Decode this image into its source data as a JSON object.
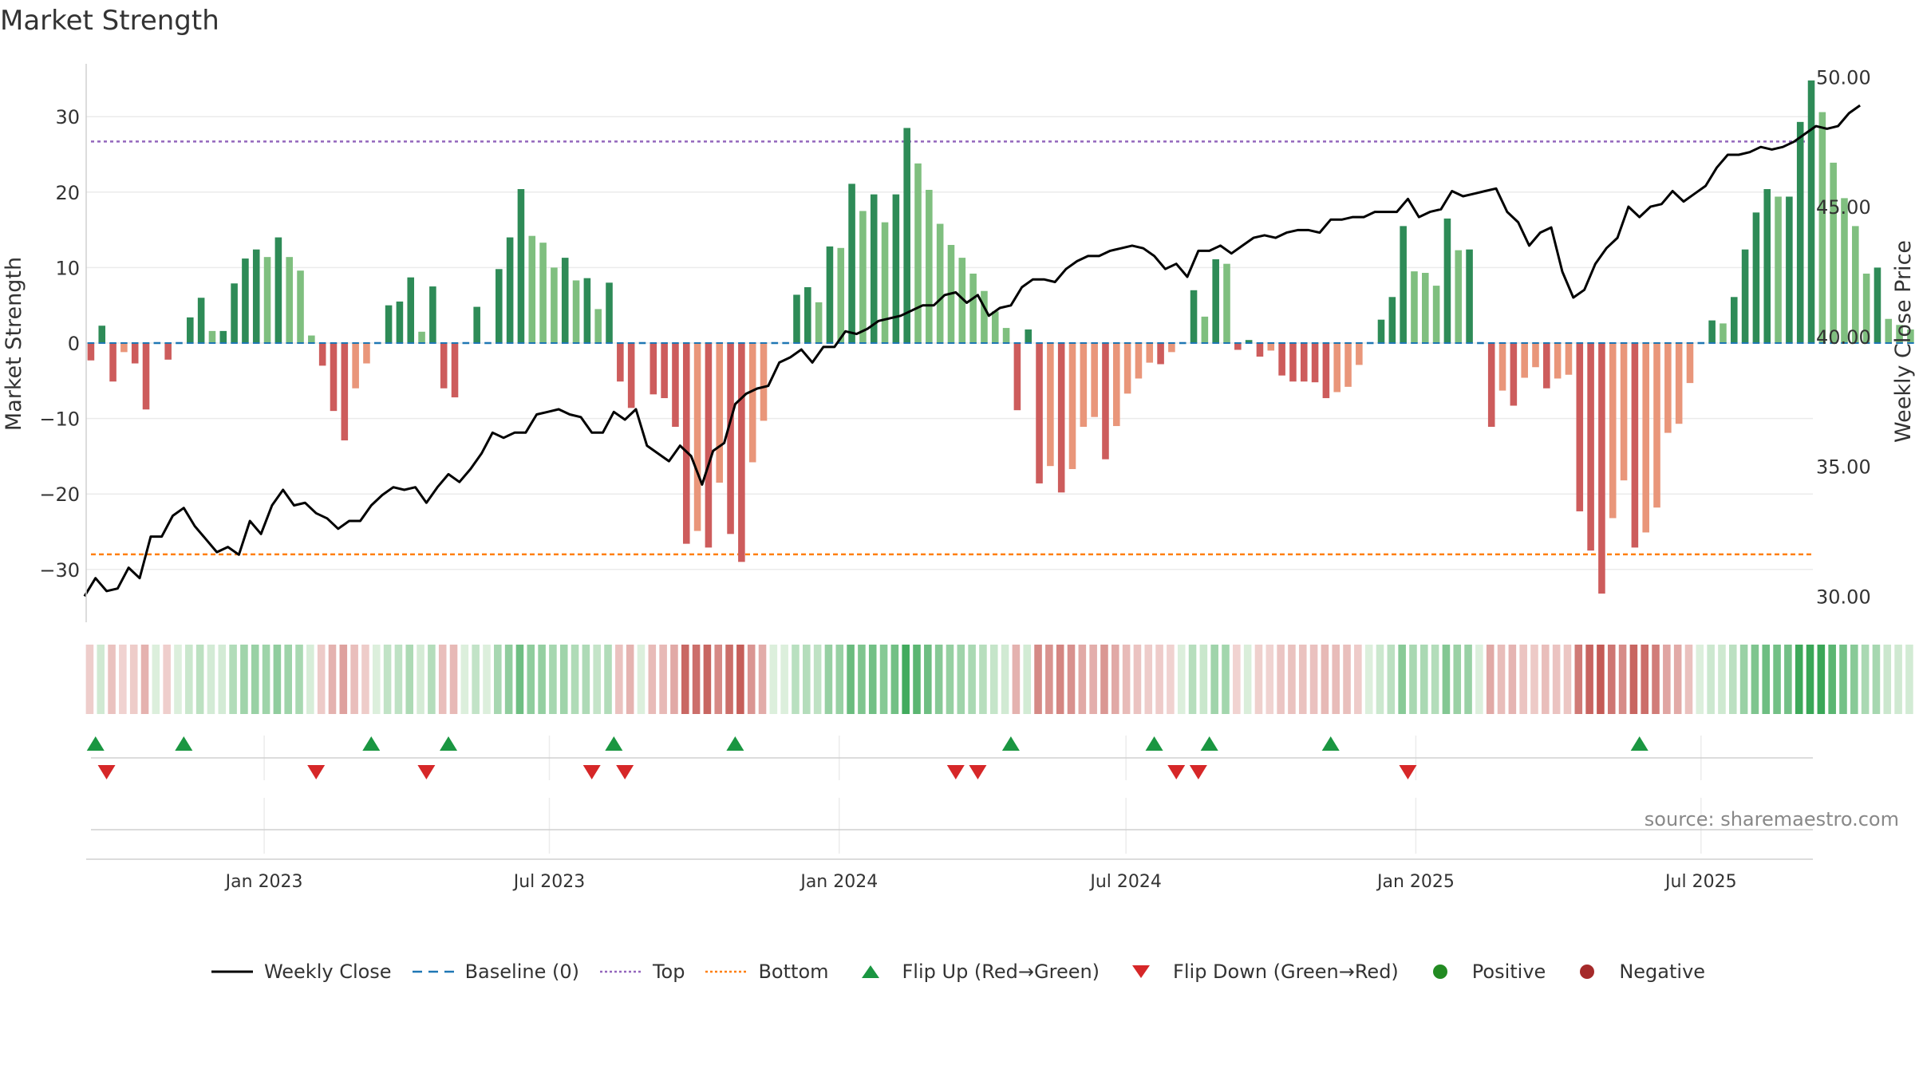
{
  "title": "Market Strength",
  "source": "source: sharemaestro.com",
  "colors": {
    "strong_green": "#2e8b57",
    "light_green": "#7fbf7f",
    "strong_red": "#cd5c5c",
    "light_red": "#e9967a",
    "close_line": "#000000",
    "baseline": "#1f77b4",
    "top": "#9467bd",
    "bottom": "#ff7f0e",
    "flip_up": "#1a9641",
    "flip_down": "#d62728",
    "positive": "#228b22",
    "negative": "#a52a2a"
  },
  "legend": [
    {
      "key": "close",
      "label": "Weekly Close",
      "icon": "solid-line"
    },
    {
      "key": "baseline",
      "label": "Baseline (0)",
      "icon": "dashed-line"
    },
    {
      "key": "top",
      "label": "Top",
      "icon": "dotted-line"
    },
    {
      "key": "bottom",
      "label": "Bottom",
      "icon": "dotted-line"
    },
    {
      "key": "flip_up",
      "label": "Flip Up (Red→Green)",
      "icon": "triangle-up"
    },
    {
      "key": "flip_down",
      "label": "Flip Down (Green→Red)",
      "icon": "triangle-down"
    },
    {
      "key": "positive",
      "label": "Positive",
      "icon": "circle"
    },
    {
      "key": "negative",
      "label": "Negative",
      "icon": "circle"
    }
  ],
  "chart_data": {
    "type": "bar",
    "title": "Market Strength",
    "ylabel": "Market Strength",
    "y2label": "Weekly Close Price",
    "ylim": [
      -37,
      37
    ],
    "y2lim": [
      29.0,
      50.5
    ],
    "yticks": [
      "30",
      "20",
      "10",
      "0",
      "−10",
      "−20",
      "−30"
    ],
    "y2ticks": [
      "50.00",
      "45.00",
      "40.00",
      "35.00",
      "30.00"
    ],
    "xticks": [
      "Jan 2023",
      "Jul 2023",
      "Jan 2024",
      "Jul 2024",
      "Jan 2025",
      "Jul 2025"
    ],
    "top_line": 26.7,
    "bottom_line": -28,
    "start_date": "2022-09-10",
    "x_end_date": "2025-09-10",
    "week_days": 7,
    "strength": [
      -2.3,
      2.3,
      -5.1,
      -1.2,
      -2.7,
      -8.8,
      0,
      -2.2,
      0,
      3.4,
      6,
      1.6,
      1.6,
      7.9,
      11.2,
      12.4,
      11.4,
      14,
      11.4,
      9.6,
      1,
      -3,
      -9,
      -12.9,
      -6,
      -2.7,
      0,
      5,
      5.5,
      8.7,
      1.5,
      7.5,
      -6,
      -7.2,
      0,
      4.8,
      0,
      9.8,
      14,
      20.4,
      14.2,
      13.3,
      10,
      11.3,
      8.3,
      8.6,
      4.5,
      8,
      -5.1,
      -8.6,
      0,
      -6.8,
      -7.3,
      -11.1,
      -26.6,
      -24.9,
      -27.1,
      -18.5,
      -25.3,
      -29,
      -15.8,
      -10.3,
      0,
      0,
      6.4,
      7.4,
      5.4,
      12.8,
      12.6,
      21.1,
      17.5,
      19.7,
      16,
      19.7,
      28.5,
      23.8,
      20.3,
      15.8,
      13,
      11.3,
      9.2,
      6.9,
      4.2,
      2,
      -8.9,
      1.8,
      -18.6,
      -16.3,
      -19.8,
      -16.7,
      -11.1,
      -9.8,
      -15.4,
      -11,
      -6.7,
      -4.7,
      -2.6,
      -2.8,
      -1.2,
      0,
      7,
      3.5,
      11.1,
      10.5,
      -0.9,
      0.4,
      -1.8,
      -1,
      -4.3,
      -5.1,
      -5.1,
      -5.2,
      -7.3,
      -6.5,
      -5.8,
      -2.9,
      0,
      3.1,
      6.1,
      15.5,
      9.5,
      9.3,
      7.6,
      16.5,
      12.3,
      12.4,
      0,
      -11.1,
      -6.3,
      -8.3,
      -4.6,
      -3.2,
      -6,
      -4.7,
      -4.2,
      -22.3,
      -27.5,
      -33.2,
      -23.2,
      -18.2,
      -27.1,
      -25.1,
      -21.8,
      -11.9,
      -10.7,
      -5.3,
      0,
      3,
      2.6,
      6.1,
      12.4,
      17.3,
      20.4,
      19.4,
      19.4,
      29.3,
      34.8,
      30.6,
      23.9,
      19.2,
      15.5,
      9.2,
      10,
      3.2,
      2.4,
      1.8,
      7.5
    ],
    "weekly_close": [
      30,
      30.7,
      30.2,
      30.3,
      31.1,
      30.7,
      32.3,
      32.3,
      33.1,
      33.4,
      32.7,
      32.2,
      31.7,
      31.9,
      31.6,
      32.9,
      32.4,
      33.5,
      34.1,
      33.5,
      33.6,
      33.2,
      33.0,
      32.6,
      32.9,
      32.9,
      33.5,
      33.9,
      34.2,
      34.1,
      34.2,
      33.6,
      34.2,
      34.7,
      34.4,
      34.9,
      35.5,
      36.3,
      36.1,
      36.3,
      36.3,
      37.0,
      37.1,
      37.2,
      37.0,
      36.9,
      36.3,
      36.3,
      37.1,
      36.8,
      37.2,
      35.8,
      35.5,
      35.2,
      35.8,
      35.4,
      34.3,
      35.6,
      35.9,
      37.4,
      37.8,
      38.0,
      38.1,
      39.0,
      39.2,
      39.5,
      39.0,
      39.6,
      39.6,
      40.2,
      40.1,
      40.3,
      40.6,
      40.7,
      40.8,
      41.0,
      41.2,
      41.2,
      41.6,
      41.7,
      41.3,
      41.6,
      40.8,
      41.1,
      41.2,
      41.9,
      42.2,
      42.2,
      42.1,
      42.6,
      42.9,
      43.1,
      43.1,
      43.3,
      43.4,
      43.5,
      43.4,
      43.1,
      42.6,
      42.8,
      42.3,
      43.3,
      43.3,
      43.5,
      43.2,
      43.5,
      43.8,
      43.9,
      43.8,
      44.0,
      44.1,
      44.1,
      44.0,
      44.5,
      44.5,
      44.6,
      44.6,
      44.8,
      44.8,
      44.8,
      45.3,
      44.6,
      44.8,
      44.9,
      45.6,
      45.4,
      45.5,
      45.6,
      45.7,
      44.8,
      44.4,
      43.5,
      44.0,
      44.2,
      42.5,
      41.5,
      41.8,
      42.8,
      43.4,
      43.8,
      45.0,
      44.6,
      45.0,
      45.1,
      45.6,
      45.2,
      45.5,
      45.8,
      46.5,
      47.0,
      47.0,
      47.1,
      47.3,
      47.2,
      47.3,
      47.5,
      47.8,
      48.1,
      48.0,
      48.1,
      48.6,
      48.9
    ],
    "flip_up": [
      1,
      9,
      26,
      33,
      48,
      59,
      84,
      97,
      102,
      113,
      141
    ],
    "flip_down": [
      2,
      21,
      31,
      46,
      49,
      79,
      81,
      99,
      101,
      120
    ],
    "x_start_pad_days": 0,
    "strip_legend": {
      "positive": "Positive",
      "negative": "Negative"
    }
  }
}
